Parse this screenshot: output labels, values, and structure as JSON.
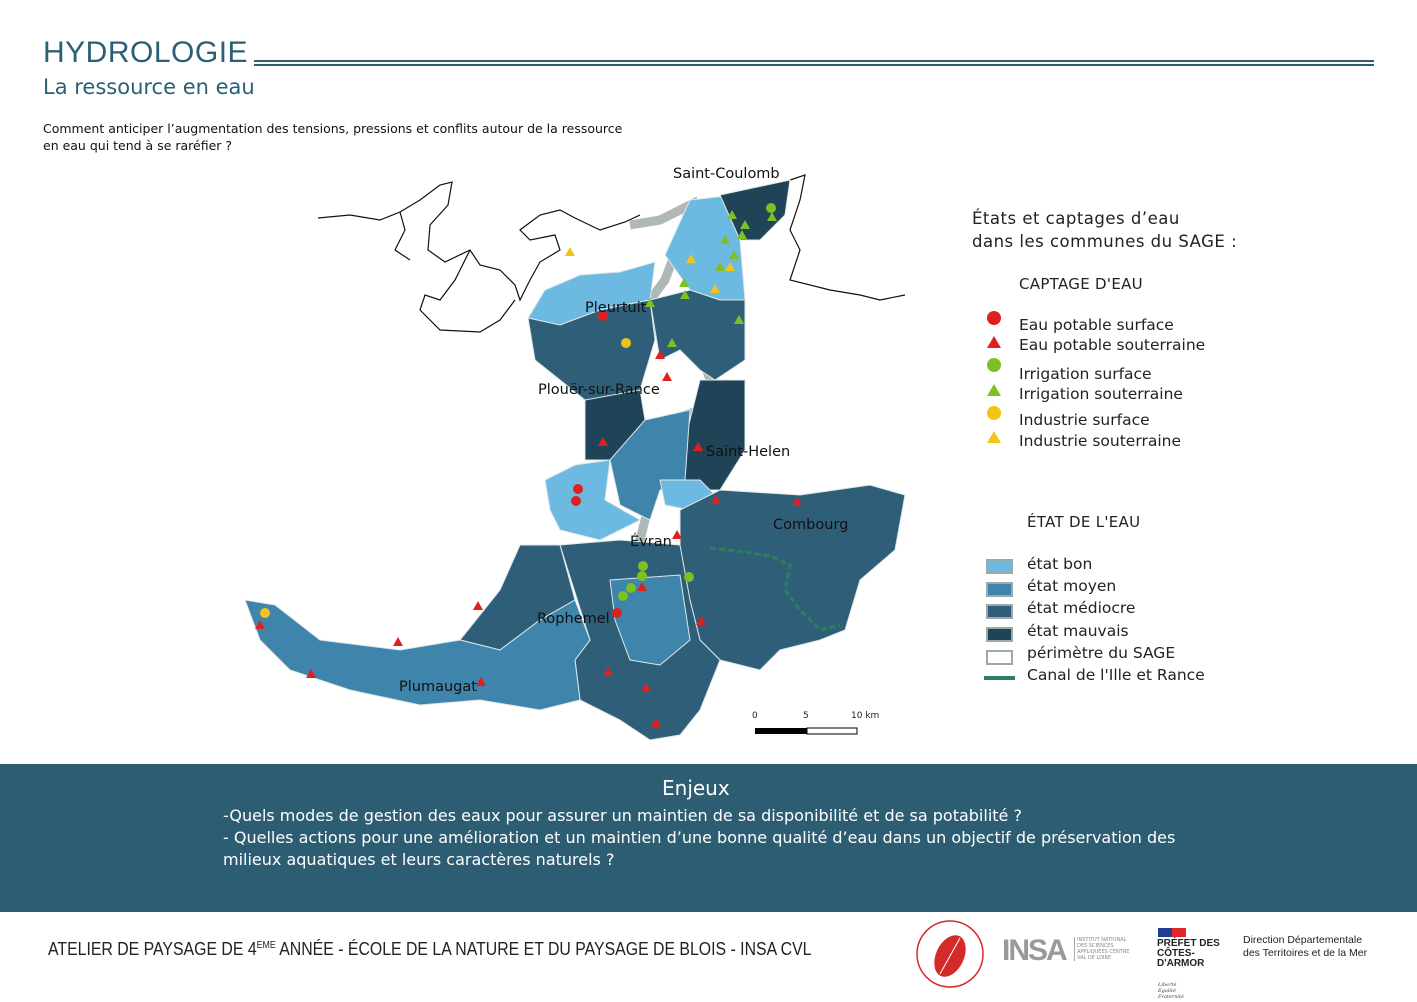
{
  "header": {
    "title": "HYDROLOGIE",
    "subtitle": "La ressource en eau",
    "question": "Comment anticiper l’augmentation des tensions, pressions et conflits autour de la ressource en eau qui tend à se raréfier ?"
  },
  "map": {
    "towns": [
      "Saint-Coulomb",
      "Pleurtuit",
      "Plouër-sur-Rance",
      "Saint-Helen",
      "Combourg",
      "Évran",
      "Rophemel",
      "Plumaugat"
    ],
    "scale": {
      "labels": [
        "0",
        "5",
        "10 km"
      ]
    }
  },
  "legend": {
    "title_line1": "États et captages d’eau",
    "title_line2": "dans les communes du SAGE :",
    "captage_heading": "CAPTAGE D'EAU",
    "captage_items": [
      {
        "label": "Eau potable surface",
        "shape": "circle",
        "color": "#e02020"
      },
      {
        "label": "Eau potable souterraine",
        "shape": "triangle",
        "color": "#e02020"
      },
      {
        "label": "Irrigation surface",
        "shape": "circle",
        "color": "#7cc121"
      },
      {
        "label": "Irrigation souterraine",
        "shape": "triangle",
        "color": "#7cc121"
      },
      {
        "label": "Industrie surface",
        "shape": "circle",
        "color": "#f0c419"
      },
      {
        "label": "Industrie souterraine",
        "shape": "triangle",
        "color": "#f0c419"
      }
    ],
    "etat_heading": "ÉTAT DE L'EAU",
    "etat_items": [
      {
        "label": "état bon",
        "color": "#6cb9e2"
      },
      {
        "label": "état moyen",
        "color": "#3f84ab"
      },
      {
        "label": "état médiocre",
        "color": "#2f5f78"
      },
      {
        "label": "état mauvais",
        "color": "#1f4457"
      },
      {
        "label": "périmètre du SAGE",
        "color": "#ffffff"
      },
      {
        "label": "Canal de l'Ille et Rance",
        "color": "#2e7d5b"
      }
    ]
  },
  "enjeux": {
    "title": "Enjeux",
    "line1": "-Quels modes de gestion des eaux pour assurer un maintien de sa disponibilité et de sa potabilité ?",
    "line2": "- Quelles actions pour une amélioration et un maintien d’une bonne qualité d’eau dans un objectif de préservation des milieux aquatiques et leurs caractères naturels ?"
  },
  "footer": {
    "text_a": "ATELIER DE PAYSAGE DE 4",
    "text_sup": "EME",
    "text_b": " ANNÉE - ÉCOLE DE LA NATURE ET DU PAYSAGE DE BLOIS - INSA CVL",
    "logos": {
      "ecole": "École de la nature et du paysage",
      "insa": "INSA",
      "insa_sub": "INSTITUT NATIONAL DES SCIENCES APPLIQUÉES CENTRE VAL DE LOIRE",
      "prefet": "PRÉFET DES CÔTES-D'ARMOR",
      "prefet_motto": "Liberté Égalité Fraternité",
      "ddtm_line1": "Direction Départementale",
      "ddtm_line2": "des Territoires et de la Mer"
    }
  }
}
